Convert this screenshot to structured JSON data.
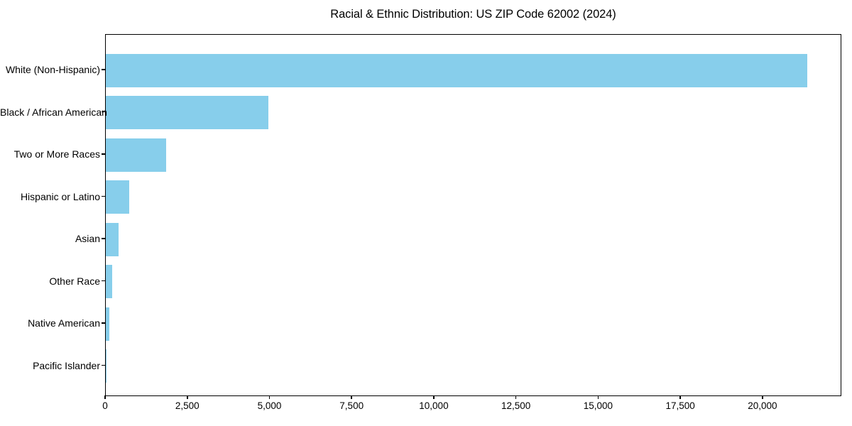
{
  "figure": {
    "background": "#ffffff",
    "spine_color": "#000000",
    "text_color": "#000000"
  },
  "chart_data": {
    "type": "bar",
    "orientation": "horizontal",
    "title": "Racial & Ethnic Distribution: US ZIP Code 62002 (2024)",
    "xlabel": "",
    "ylabel": "",
    "categories": [
      "White (Non-Hispanic)",
      "Black / African American",
      "Two or More Races",
      "Hispanic or Latino",
      "Asian",
      "Other Race",
      "Native American",
      "Pacific Islander"
    ],
    "values": [
      21380,
      4950,
      1830,
      725,
      390,
      195,
      110,
      10
    ],
    "bar_color": "#87CEEB",
    "xlim": [
      0,
      22400
    ],
    "xticks": [
      0,
      2500,
      5000,
      7500,
      10000,
      12500,
      15000,
      17500,
      20000
    ],
    "xtick_labels": [
      "0",
      "2,500",
      "5,000",
      "7,500",
      "10,000",
      "12,500",
      "15,000",
      "17,500",
      "20,000"
    ],
    "grid": false,
    "legend": "none",
    "value_labels_shown": false
  }
}
